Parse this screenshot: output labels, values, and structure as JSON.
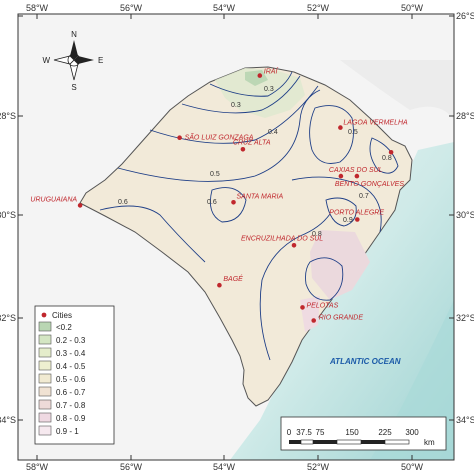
{
  "map": {
    "lon_ticks": [
      "58°W",
      "56°W",
      "54°W",
      "52°W",
      "50°W"
    ],
    "lat_ticks": [
      "26°S",
      "28°S",
      "30°S",
      "32°S",
      "34°S"
    ]
  },
  "cities": [
    {
      "name": "IRAÍ",
      "lon": -53.25,
      "lat": -27.18
    },
    {
      "name": "SÃO LUIZ GONZAGA",
      "lon": -54.96,
      "lat": -28.41
    },
    {
      "name": "CRUZ ALTA",
      "lon": -53.61,
      "lat": -28.64
    },
    {
      "name": "LAGOA VERMELHA",
      "lon": -51.53,
      "lat": -28.21
    },
    {
      "name": "CAXIAS DO SUL",
      "lon": -51.18,
      "lat": -29.17
    },
    {
      "name": "BENTO GONÇALVES",
      "lon": -51.52,
      "lat": -29.17
    },
    {
      "name": "SANTA MARIA",
      "lon": -53.81,
      "lat": -29.69
    },
    {
      "name": "URUGUAIANA",
      "lon": -57.08,
      "lat": -29.75
    },
    {
      "name": "PORTO ALEGRE",
      "lon": -51.17,
      "lat": -30.03
    },
    {
      "name": "ENCRUZILHADA DO SUL",
      "lon": -52.52,
      "lat": -30.54
    },
    {
      "name": "BAGÉ",
      "lon": -54.11,
      "lat": -31.33
    },
    {
      "name": "PELOTAS",
      "lon": -52.34,
      "lat": -31.77
    },
    {
      "name": "RIO GRANDE",
      "lon": -52.1,
      "lat": -32.03
    },
    {
      "name": "",
      "lon": -50.45,
      "lat": -28.7
    }
  ],
  "isolines": [
    "0.3",
    "0.3",
    "0.4",
    "0.5",
    "0.5",
    "0.6",
    "0.6",
    "0.7",
    "0.8",
    "0.8",
    "0.9"
  ],
  "ocean_label": "ATLANTIC OCEAN",
  "compass": {
    "n": "N",
    "s": "S",
    "e": "E",
    "w": "W"
  },
  "legend": {
    "cities_label": "Cities",
    "city_color": "#c0272d",
    "classes": [
      {
        "label": "<0.2",
        "color": "#b9d6b3"
      },
      {
        "label": "0.2 - 0.3",
        "color": "#d4e6c3"
      },
      {
        "label": "0.3 - 0.4",
        "color": "#e5edcb"
      },
      {
        "label": "0.4 - 0.5",
        "color": "#eeefd0"
      },
      {
        "label": "0.5 - 0.6",
        "color": "#f1ead2"
      },
      {
        "label": "0.6 - 0.7",
        "color": "#f0e2d3"
      },
      {
        "label": "0.7 - 0.8",
        "color": "#eddad8"
      },
      {
        "label": "0.8 - 0.9",
        "color": "#efd9e2"
      },
      {
        "label": "0.9 - 1",
        "color": "#f6e9ef"
      }
    ]
  },
  "scale_bar": {
    "ticks": [
      "0",
      "37.5",
      "75",
      "150",
      "225",
      "300"
    ],
    "unit": "km"
  }
}
